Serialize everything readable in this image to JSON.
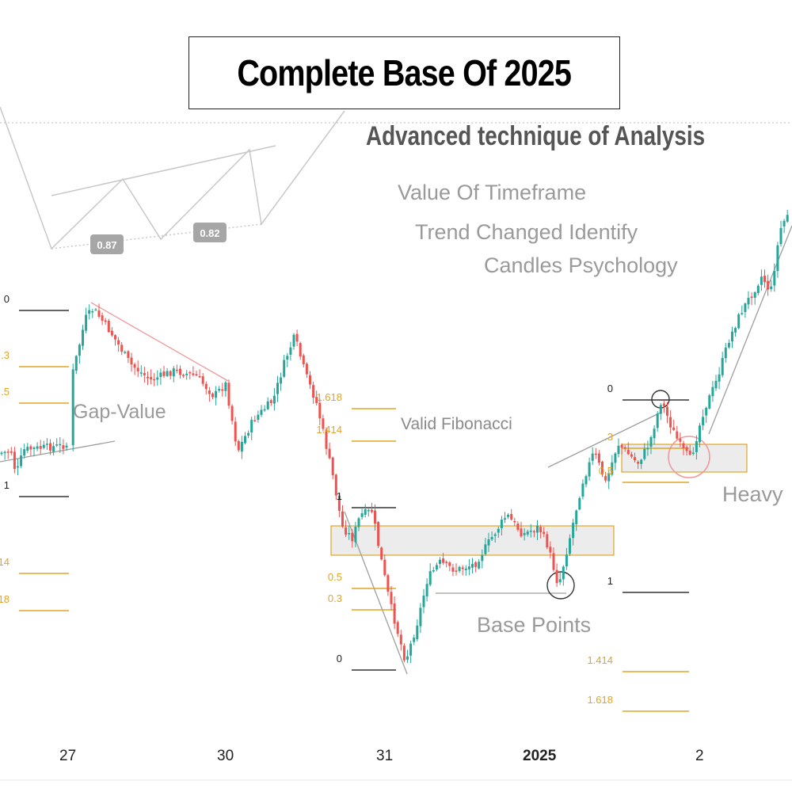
{
  "title": "Complete Base Of 2025",
  "subtitle": "Advanced technique of Analysis",
  "notes": [
    "Value Of Timeframe",
    "Trend Changed Identify",
    "Candles Psychology"
  ],
  "annotations": {
    "gap_value": "Gap-Value",
    "valid_fibonacci": "Valid Fibonacci",
    "base_points": "Base Points",
    "heavy": "Heavy"
  },
  "pattern_badges": [
    "0.87",
    "0.82"
  ],
  "chart_data": {
    "type": "candlestick",
    "x_tick_labels": [
      "27",
      "30",
      "31",
      "2025",
      "2"
    ],
    "fibonacci_levels": [
      {
        "group": "left",
        "labels": [
          "0",
          ".3",
          ".5",
          "1",
          ".14",
          ".18"
        ]
      },
      {
        "group": "middle",
        "labels": [
          "1.618",
          "1.414",
          "1",
          "0.5",
          "0.3",
          "0"
        ]
      },
      {
        "group": "right",
        "labels": [
          "0",
          ".3",
          "0.5",
          "1",
          "1.414",
          "1.618"
        ]
      }
    ],
    "colors": {
      "up": "#26a69a",
      "down": "#ef5350",
      "fib": "#e0a526",
      "level": "#333333",
      "zone": "#e9e9e9"
    },
    "grid": false,
    "legend": "none"
  }
}
